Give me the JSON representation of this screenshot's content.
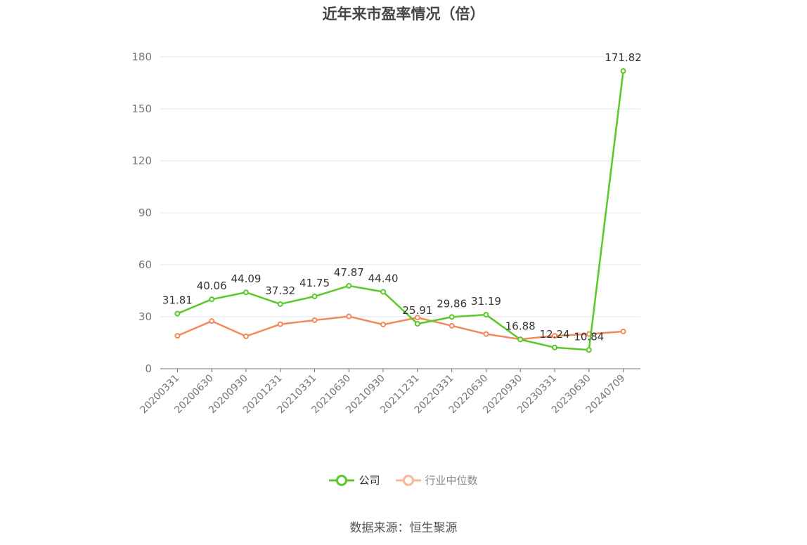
{
  "chart_data": {
    "type": "line",
    "title": "近年来市盈率情况（倍）",
    "categories": [
      "20200331",
      "20200630",
      "20200930",
      "20201231",
      "20210331",
      "20210630",
      "20210930",
      "20211231",
      "20220331",
      "20220630",
      "20220930",
      "20230331",
      "20230630",
      "20240709"
    ],
    "series": [
      {
        "name": "公司",
        "color": "#5ac828",
        "values": [
          31.81,
          40.06,
          44.09,
          37.32,
          41.75,
          47.87,
          44.4,
          25.91,
          29.86,
          31.19,
          16.88,
          12.24,
          10.84,
          171.82
        ],
        "labels": [
          "31.81",
          "40.06",
          "44.09",
          "37.32",
          "41.75",
          "47.87",
          "44.40",
          "25.91",
          "29.86",
          "31.19",
          "16.88",
          "12.24",
          "10.84",
          "171.82"
        ]
      },
      {
        "name": "行业中位数",
        "color": "#f2895a",
        "values": [
          19.0,
          27.5,
          18.7,
          25.7,
          28.0,
          30.2,
          25.5,
          29.5,
          24.8,
          20.0,
          17.0,
          19.0,
          20.0,
          21.5
        ]
      }
    ],
    "yticks": [
      "0",
      "30",
      "60",
      "90",
      "120",
      "150",
      "180"
    ],
    "ylim": [
      0,
      180
    ],
    "grid": true,
    "legend_position": "bottom-center"
  },
  "legend": {
    "company_label": "公司",
    "industry_label": "行业中位数",
    "company_label_color": "#333333",
    "industry_label_color": "#888888",
    "industry_marker_color": "#f9b79a"
  },
  "source": "数据来源：恒生聚源"
}
